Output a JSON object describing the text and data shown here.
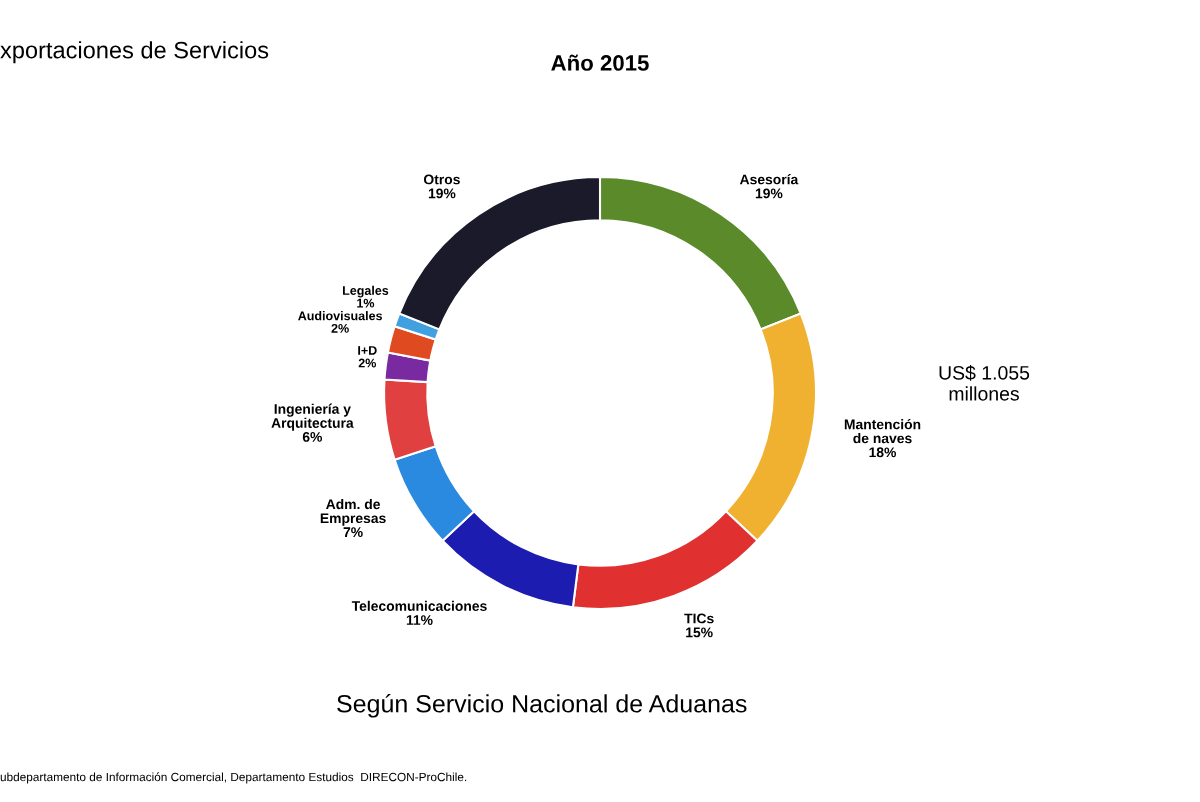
{
  "chart_data": {
    "type": "donut",
    "title": "xportaciones de Servicios",
    "subtitle": "Año 2015",
    "categories": [
      "Asesoría",
      "Mantención\nde naves",
      "TICs",
      "Telecomunicaciones",
      "Adm. de\nEmpresas",
      "Ingeniería y\nArquitectura",
      "I+D",
      "Audiovisuales",
      "Legales",
      "Otros"
    ],
    "values": [
      19,
      18,
      15,
      11,
      7,
      6,
      2,
      2,
      1,
      19
    ],
    "colors": [
      "#5a8a2a",
      "#f0b030",
      "#e03030",
      "#1c1cb0",
      "#2a8ae0",
      "#e04040",
      "#7a2aa0",
      "#e04a20",
      "#40a0e0",
      "#1a1a2a"
    ],
    "value_labels": [
      "19%",
      "18%",
      "15%",
      "11%",
      "7%",
      "6%",
      "2%",
      "2%",
      "1%",
      "19%"
    ],
    "annotations": [
      "US$ 1.055\nmillones",
      "Según Servicio Nacional de Aduanas",
      "ubdepartamento de Información Comercial, Departamento Estudios  DIRECON-ProChile."
    ],
    "legend": false
  }
}
